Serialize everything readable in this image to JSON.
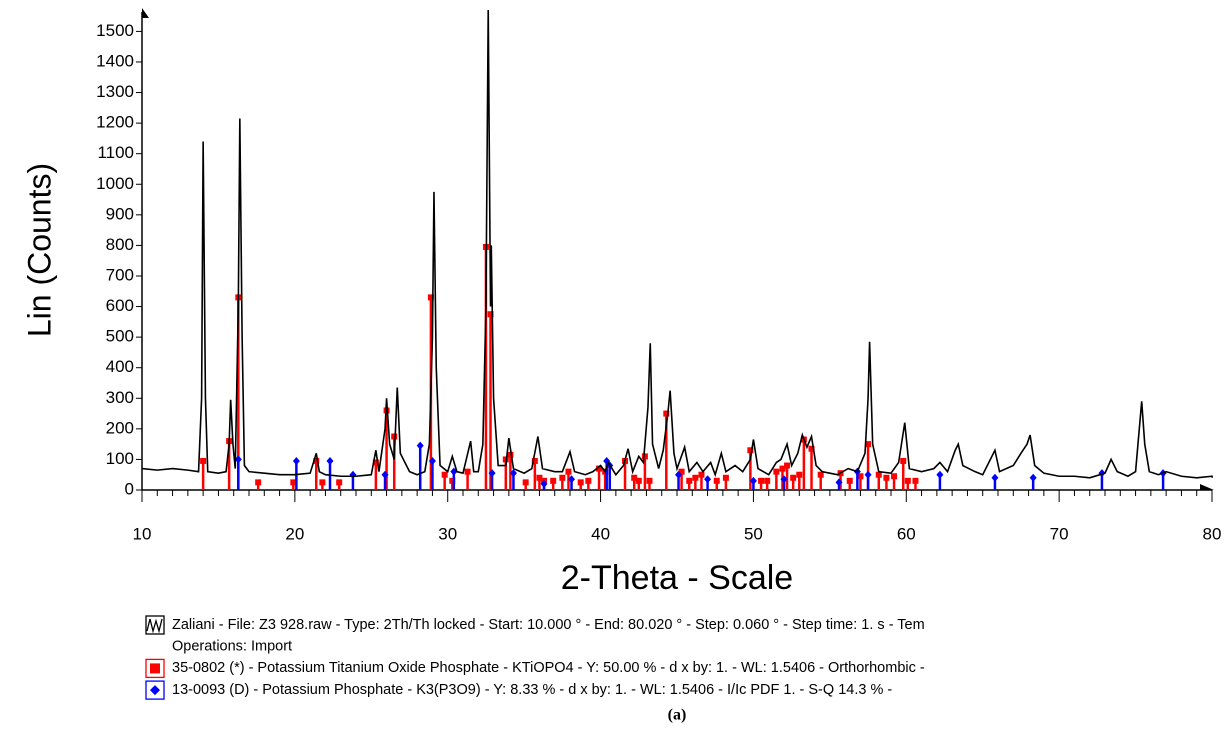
{
  "chart_data": {
    "type": "line",
    "x_label": "2-Theta - Scale",
    "y_label": "Lin (Counts)",
    "caption": "(a)",
    "xlim": [
      10,
      80
    ],
    "xticks": [
      10,
      20,
      30,
      40,
      50,
      60,
      70,
      80
    ],
    "ylim": [
      0,
      1570
    ],
    "yticks": [
      0,
      100,
      200,
      300,
      400,
      500,
      600,
      700,
      800,
      900,
      1000,
      1100,
      1200,
      1300,
      1400,
      1500
    ],
    "series": [
      {
        "name": "Zaliani - File: Z3 928.raw - Type: 2Th/Th locked - Start: 10.000 ° - End: 80.020 ° - Step: 0.060 ° - Step time: 1. s - Tem",
        "operations": "Operations: Import",
        "style": "line",
        "color": "#000000",
        "x": [
          10,
          11,
          12,
          13,
          13.7,
          13.9,
          14.0,
          14.15,
          14.3,
          15,
          15.5,
          15.7,
          15.8,
          15.95,
          16.1,
          16.3,
          16.4,
          16.55,
          16.7,
          17,
          18,
          19,
          20,
          21,
          21.4,
          21.6,
          22,
          23,
          24,
          25,
          25.3,
          25.5,
          25.9,
          26.0,
          26.2,
          26.5,
          26.7,
          26.9,
          27.5,
          28,
          28.5,
          28.8,
          29.0,
          29.1,
          29.25,
          29.5,
          30,
          30.3,
          30.6,
          31,
          31.5,
          31.7,
          32,
          32.3,
          32.5,
          32.65,
          32.8,
          32.85,
          33.0,
          33.3,
          33.8,
          34,
          34.3,
          35,
          35.5,
          35.9,
          36.2,
          37,
          37.5,
          38,
          38.3,
          39,
          39.5,
          40,
          40.3,
          40.5,
          41,
          41.5,
          41.8,
          42.1,
          42.5,
          42.8,
          43.1,
          43.25,
          43.4,
          43.8,
          44.1,
          44.4,
          44.55,
          44.8,
          45,
          45.5,
          45.8,
          46.3,
          46.7,
          47.2,
          47.5,
          47.9,
          48.2,
          48.8,
          49.3,
          49.8,
          50,
          50.3,
          51,
          51.5,
          51.8,
          52.2,
          52.5,
          52.9,
          53.2,
          53.5,
          53.8,
          54.1,
          54.5,
          55,
          55.5,
          56.2,
          56.8,
          57.3,
          57.5,
          57.6,
          57.8,
          58.2,
          59,
          59.5,
          59.9,
          60.2,
          61,
          61.8,
          62.2,
          62.7,
          63.2,
          63.4,
          63.7,
          64.5,
          65,
          65.8,
          66.1,
          67,
          67.5,
          67.9,
          68.1,
          68.4,
          69,
          70,
          71,
          72,
          73,
          73.4,
          73.8,
          74.5,
          75,
          75.4,
          75.6,
          75.9,
          76.5,
          77,
          78,
          79,
          80,
          80.02
        ],
        "values": [
          70,
          65,
          70,
          65,
          60,
          300,
          1140,
          300,
          60,
          55,
          60,
          150,
          295,
          150,
          70,
          600,
          1215,
          500,
          80,
          60,
          55,
          50,
          50,
          55,
          120,
          60,
          50,
          45,
          45,
          50,
          130,
          60,
          200,
          300,
          150,
          100,
          335,
          120,
          60,
          50,
          60,
          150,
          500,
          975,
          400,
          80,
          60,
          110,
          60,
          55,
          160,
          60,
          60,
          150,
          600,
          1570,
          600,
          800,
          300,
          80,
          80,
          170,
          70,
          55,
          70,
          175,
          70,
          60,
          60,
          125,
          60,
          50,
          60,
          80,
          60,
          90,
          50,
          80,
          135,
          60,
          110,
          90,
          270,
          480,
          150,
          70,
          130,
          250,
          325,
          120,
          70,
          140,
          60,
          90,
          60,
          90,
          50,
          120,
          60,
          80,
          60,
          100,
          165,
          70,
          50,
          90,
          100,
          150,
          80,
          120,
          180,
          140,
          175,
          80,
          60,
          55,
          50,
          70,
          60,
          120,
          300,
          485,
          150,
          60,
          55,
          90,
          220,
          70,
          60,
          70,
          90,
          60,
          130,
          150,
          80,
          60,
          50,
          130,
          60,
          80,
          120,
          150,
          180,
          80,
          55,
          45,
          45,
          40,
          55,
          100,
          60,
          45,
          60,
          290,
          150,
          60,
          50,
          60,
          45,
          40,
          45,
          40
        ]
      },
      {
        "name": "35-0802 (*) - Potassium Titanium Oxide Phosphate - KTiOPO4 - Y: 50.00 % - d x by: 1. - WL: 1.5406 - Orthorhombic -",
        "style": "stick",
        "marker": "square",
        "color": "#ff0000",
        "x": [
          14.0,
          15.7,
          16.3,
          17.6,
          19.9,
          21.4,
          21.8,
          22.9,
          25.3,
          26.0,
          26.5,
          28.9,
          29.8,
          30.3,
          31.3,
          32.5,
          32.8,
          33.8,
          34.1,
          35.1,
          35.7,
          36.0,
          36.3,
          36.9,
          37.5,
          37.9,
          38.7,
          39.2,
          39.9,
          40.3,
          41.6,
          42.2,
          42.5,
          42.9,
          43.2,
          44.3,
          45.3,
          45.8,
          46.2,
          46.6,
          47.6,
          48.2,
          49.8,
          50.5,
          50.9,
          51.5,
          51.9,
          52.2,
          52.6,
          53.0,
          53.3,
          53.8,
          54.4,
          55.7,
          56.3,
          57.0,
          57.5,
          58.2,
          58.7,
          59.2,
          59.8,
          60.1,
          60.6
        ],
        "values": [
          95,
          160,
          630,
          25,
          25,
          95,
          25,
          25,
          90,
          260,
          175,
          630,
          50,
          30,
          60,
          795,
          575,
          100,
          115,
          25,
          95,
          40,
          30,
          30,
          40,
          60,
          25,
          30,
          70,
          60,
          95,
          40,
          30,
          110,
          30,
          250,
          60,
          30,
          40,
          50,
          30,
          40,
          130,
          30,
          30,
          60,
          70,
          80,
          40,
          50,
          165,
          135,
          50,
          55,
          30,
          45,
          150,
          50,
          40,
          45,
          95,
          30,
          30
        ]
      },
      {
        "name": "13-0093 (D) - Potassium Phosphate - K3(P3O9) - Y: 8.33 % - d x by: 1. - WL: 1.5406 - I/Ic PDF 1. - S-Q 14.3 % -",
        "style": "stick",
        "marker": "diamond",
        "color": "#0000ff",
        "x": [
          16.3,
          20.1,
          22.3,
          23.8,
          25.9,
          28.2,
          29.0,
          30.4,
          32.9,
          34.3,
          36.3,
          38.1,
          40.4,
          40.6,
          45.1,
          47.0,
          50.0,
          52.0,
          55.6,
          56.8,
          57.5,
          62.2,
          65.8,
          68.3,
          72.8,
          76.8
        ],
        "values": [
          100,
          95,
          95,
          50,
          50,
          145,
          95,
          60,
          55,
          55,
          20,
          35,
          95,
          80,
          50,
          35,
          30,
          35,
          25,
          60,
          50,
          50,
          40,
          40,
          55,
          55
        ]
      }
    ]
  }
}
